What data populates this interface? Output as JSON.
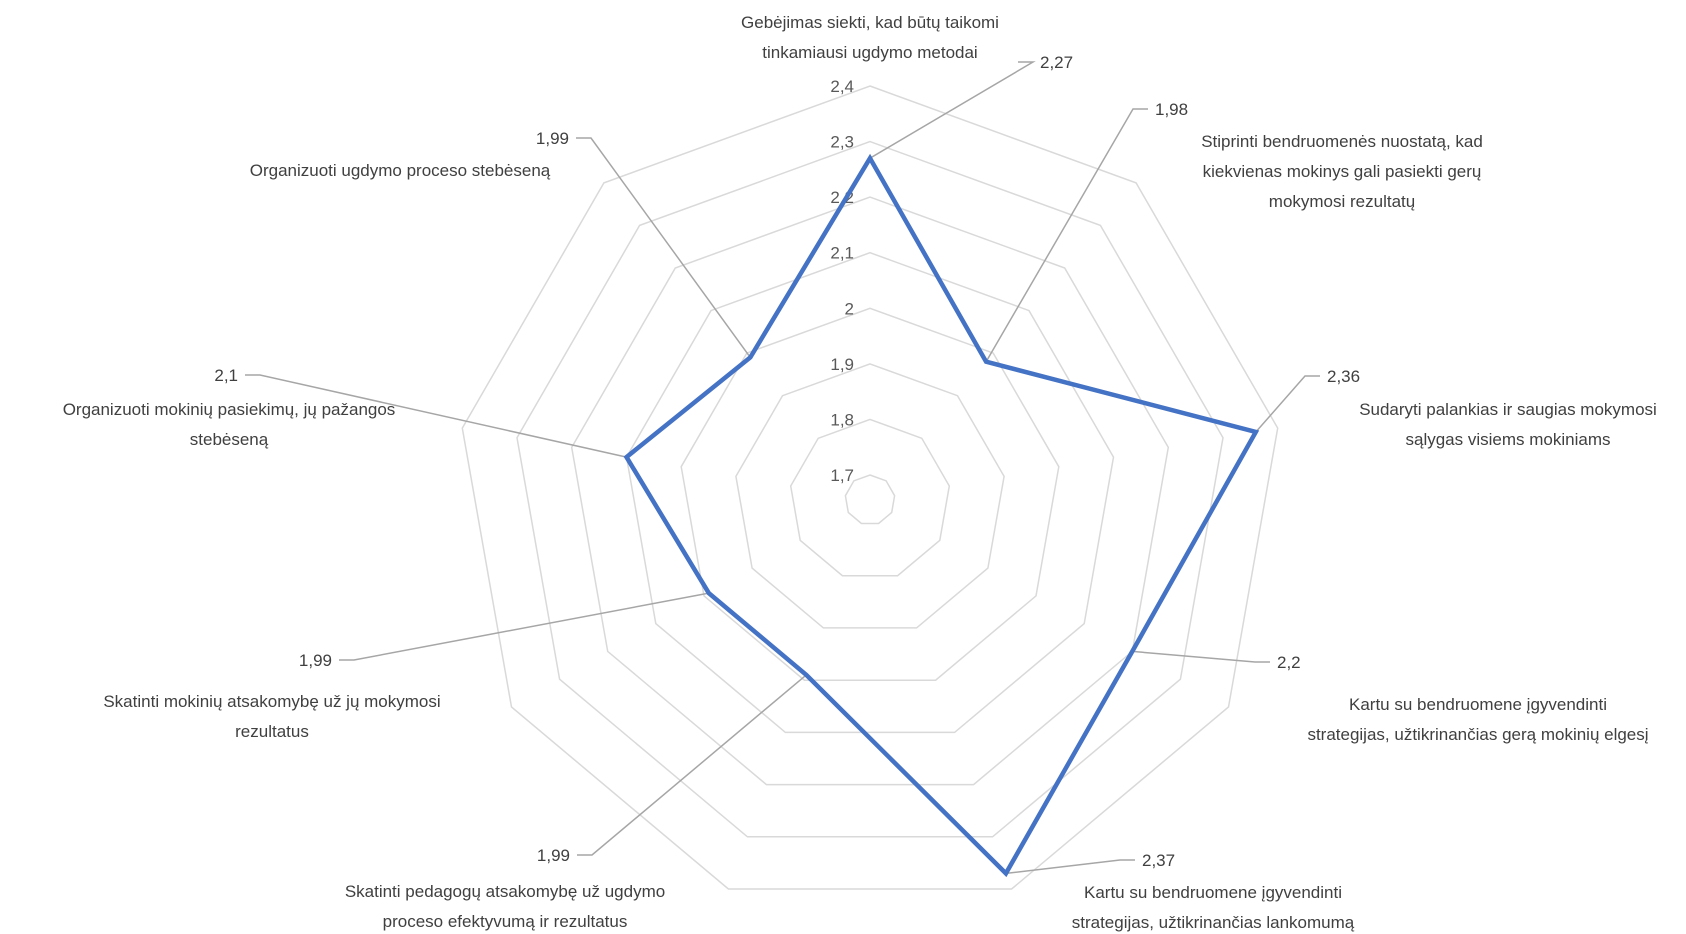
{
  "chart_data": {
    "type": "radar",
    "rlim": [
      1.7,
      2.4
    ],
    "ticks": [
      "1,7",
      "1,8",
      "1,9",
      "2",
      "2,1",
      "2,2",
      "2,3",
      "2,4"
    ],
    "tick_values": [
      1.7,
      1.8,
      1.9,
      2.0,
      2.1,
      2.2,
      2.3,
      2.4
    ],
    "grid": true,
    "series_color": "#4472C4",
    "grid_color": "#D9D9D9",
    "leader_color": "#A6A6A6",
    "categories": [
      {
        "lines": [
          "Gebėjimas siekti, kad būtų taikomi",
          "tinkamiausi ugdymo metodai"
        ],
        "value": 2.27,
        "label": "2,27"
      },
      {
        "lines": [
          "Stiprinti bendruomenės nuostatą, kad",
          "kiekvienas mokinys gali pasiekti gerų",
          "mokymosi rezultatų"
        ],
        "value": 1.98,
        "label": "1,98"
      },
      {
        "lines": [
          "Sudaryti palankias ir saugias mokymosi",
          "sąlygas visiems mokiniams"
        ],
        "value": 2.36,
        "label": "2,36"
      },
      {
        "lines": [
          "Kartu su bendruomene įgyvendinti",
          "strategijas, užtikrinančias gerą mokinių elgesį"
        ],
        "value": 2.2,
        "label": "2,2"
      },
      {
        "lines": [
          "Kartu su bendruomene įgyvendinti",
          "strategijas, užtikrinančias lankomumą"
        ],
        "value": 2.37,
        "label": "2,37"
      },
      {
        "lines": [
          "Skatinti pedagogų atsakomybę už ugdymo",
          "proceso efektyvumą ir rezultatus"
        ],
        "value": 1.99,
        "label": "1,99"
      },
      {
        "lines": [
          "Skatinti mokinių atsakomybę už jų mokymosi",
          "rezultatus"
        ],
        "value": 1.99,
        "label": "1,99"
      },
      {
        "lines": [
          "Organizuoti mokinių pasiekimų, jų pažangos",
          "stebėseną"
        ],
        "value": 2.1,
        "label": "2,1"
      },
      {
        "lines": [
          "Organizuoti ugdymo proceso stebėseną"
        ],
        "value": 1.99,
        "label": "1,99"
      }
    ]
  }
}
